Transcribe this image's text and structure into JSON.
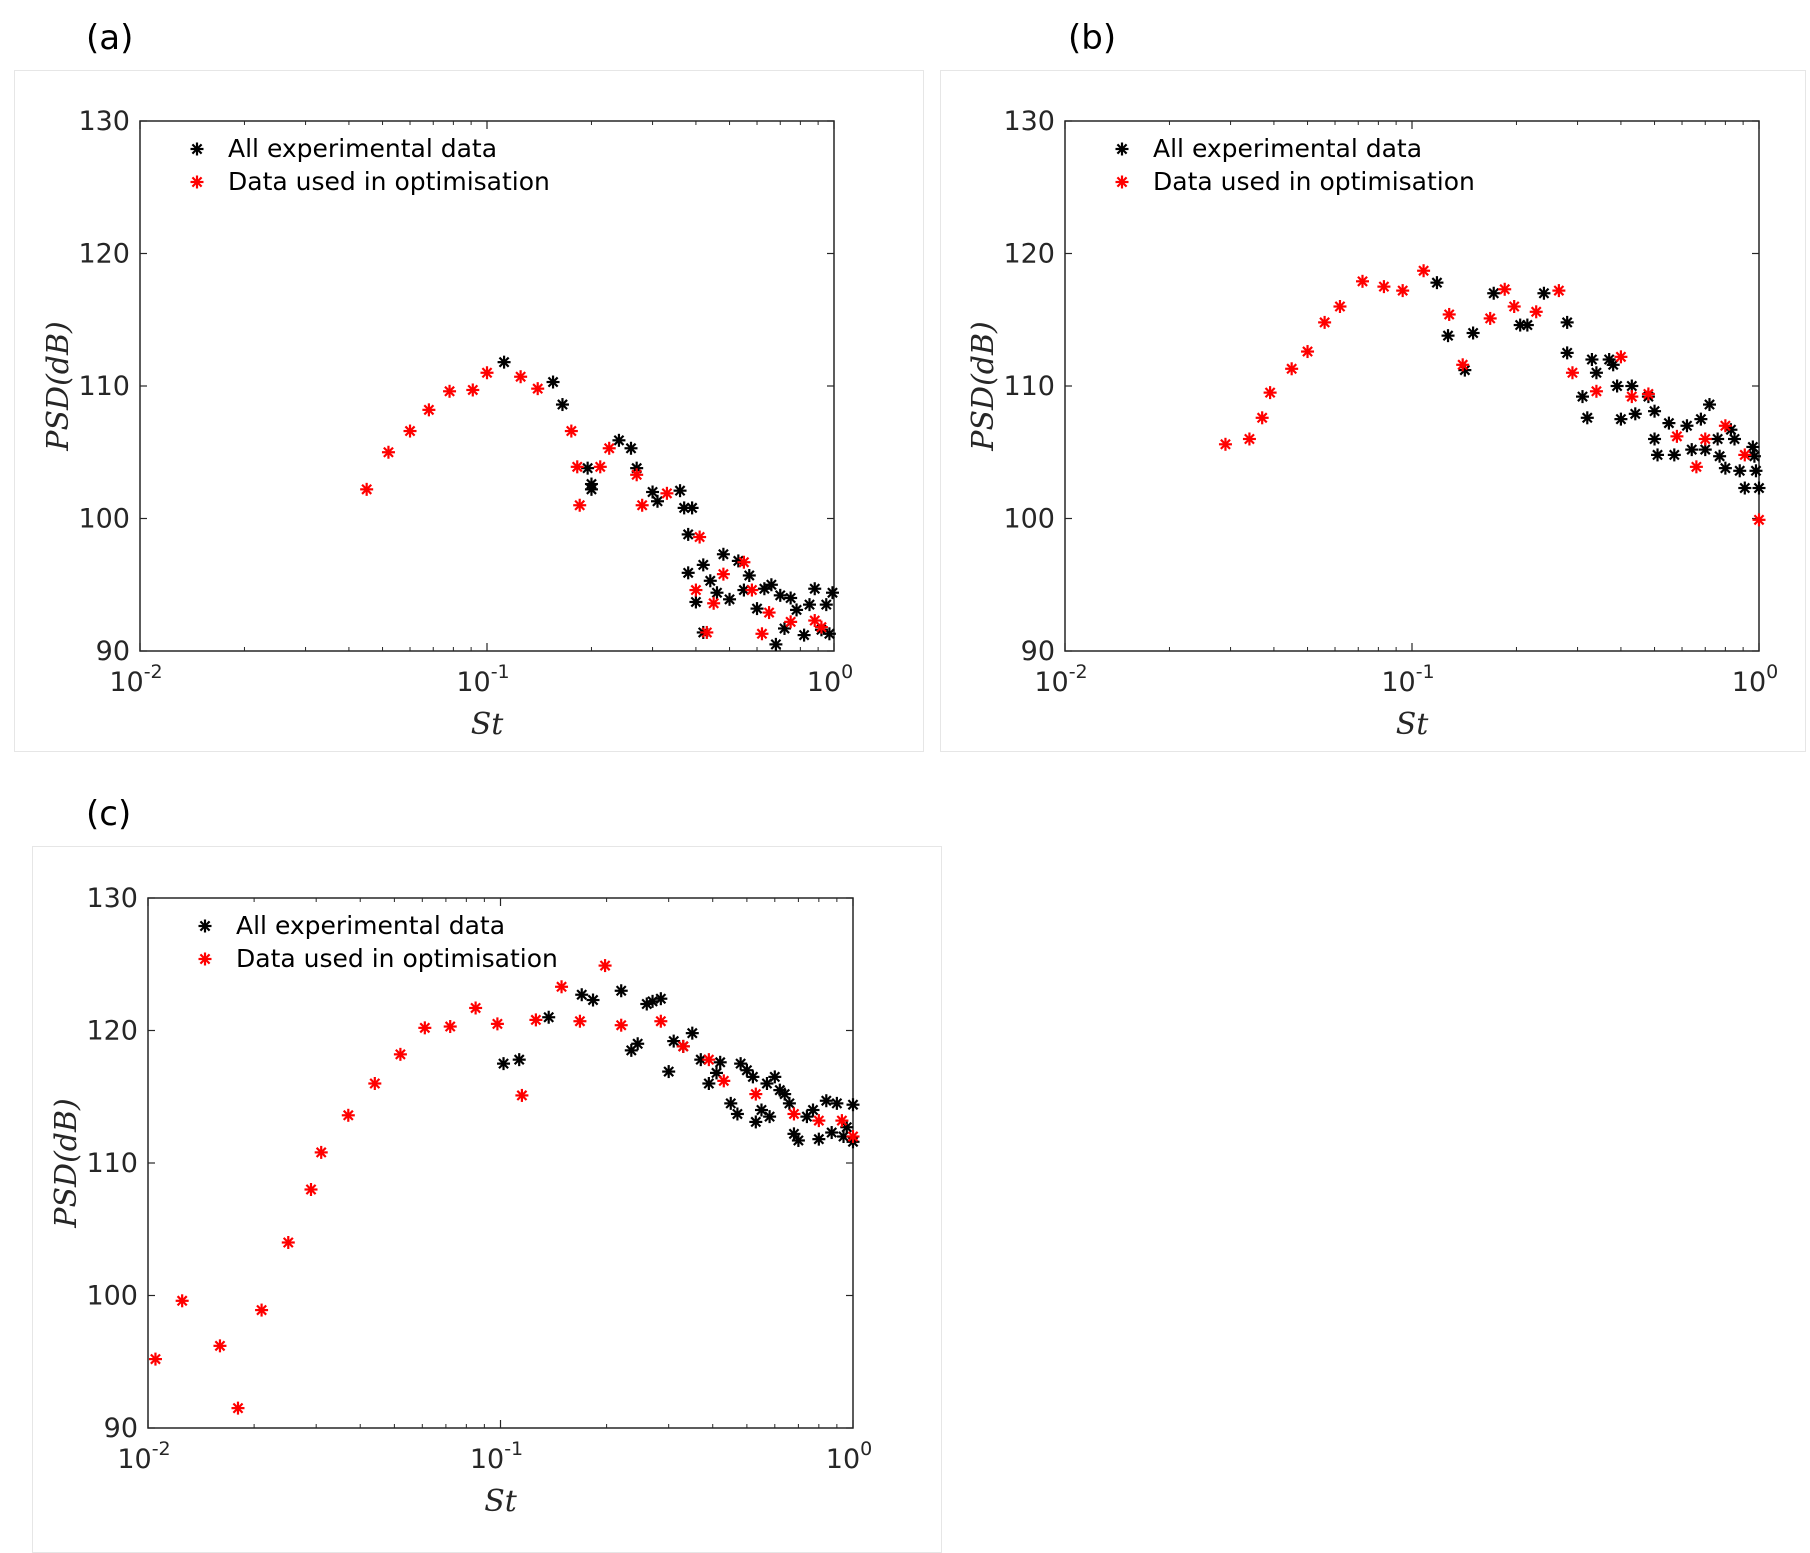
{
  "chart_data": [
    {
      "panel": "(a)",
      "type": "scatter",
      "xscale": "log",
      "xlim": [
        0.01,
        1
      ],
      "ylim": [
        90,
        130
      ],
      "yticks": [
        90,
        100,
        110,
        120,
        130
      ],
      "xticks": [
        {
          "base": "10",
          "exp": "-2"
        },
        {
          "base": "10",
          "exp": "-1"
        },
        {
          "base": "10",
          "exp": "0"
        }
      ],
      "xlabel": "St",
      "ylabel": "PSD(dB)",
      "legend": [
        "All experimental data",
        "Data used in optimisation"
      ],
      "series": [
        {
          "name": "All experimental data",
          "color": "#000000",
          "points": [
            [
              0.112,
              111.8
            ],
            [
              0.155,
              110.3
            ],
            [
              0.165,
              108.6
            ],
            [
              0.195,
              103.8
            ],
            [
              0.2,
              102.2
            ],
            [
              0.2,
              102.6
            ],
            [
              0.24,
              105.9
            ],
            [
              0.26,
              105.3
            ],
            [
              0.27,
              103.8
            ],
            [
              0.3,
              102.0
            ],
            [
              0.31,
              101.3
            ],
            [
              0.36,
              102.1
            ],
            [
              0.37,
              100.8
            ],
            [
              0.38,
              98.8
            ],
            [
              0.39,
              100.8
            ],
            [
              0.38,
              95.9
            ],
            [
              0.4,
              93.7
            ],
            [
              0.42,
              96.5
            ],
            [
              0.42,
              91.4
            ],
            [
              0.44,
              95.3
            ],
            [
              0.46,
              94.4
            ],
            [
              0.48,
              97.3
            ],
            [
              0.5,
              93.9
            ],
            [
              0.53,
              96.8
            ],
            [
              0.55,
              94.6
            ],
            [
              0.57,
              95.7
            ],
            [
              0.6,
              93.2
            ],
            [
              0.63,
              94.7
            ],
            [
              0.66,
              95.0
            ],
            [
              0.68,
              90.5
            ],
            [
              0.7,
              94.2
            ],
            [
              0.72,
              91.7
            ],
            [
              0.75,
              94.0
            ],
            [
              0.78,
              93.1
            ],
            [
              0.82,
              91.2
            ],
            [
              0.85,
              93.5
            ],
            [
              0.88,
              94.7
            ],
            [
              0.92,
              91.6
            ],
            [
              0.95,
              93.5
            ],
            [
              0.97,
              91.3
            ],
            [
              0.99,
              94.4
            ]
          ]
        },
        {
          "name": "Data used in optimisation",
          "color": "#ff0000",
          "points": [
            [
              0.045,
              102.2
            ],
            [
              0.052,
              105.0
            ],
            [
              0.06,
              106.6
            ],
            [
              0.068,
              108.2
            ],
            [
              0.078,
              109.6
            ],
            [
              0.091,
              109.7
            ],
            [
              0.1,
              111.0
            ],
            [
              0.125,
              110.7
            ],
            [
              0.14,
              109.8
            ],
            [
              0.175,
              106.6
            ],
            [
              0.182,
              103.9
            ],
            [
              0.185,
              101.0
            ],
            [
              0.212,
              103.9
            ],
            [
              0.225,
              105.3
            ],
            [
              0.27,
              103.3
            ],
            [
              0.28,
              101.0
            ],
            [
              0.33,
              101.9
            ],
            [
              0.4,
              94.6
            ],
            [
              0.41,
              98.6
            ],
            [
              0.43,
              91.4
            ],
            [
              0.45,
              93.6
            ],
            [
              0.48,
              95.8
            ],
            [
              0.55,
              96.7
            ],
            [
              0.58,
              94.6
            ],
            [
              0.62,
              91.3
            ],
            [
              0.65,
              92.9
            ],
            [
              0.75,
              92.2
            ],
            [
              0.88,
              92.3
            ],
            [
              0.92,
              91.8
            ]
          ]
        }
      ]
    },
    {
      "panel": "(b)",
      "type": "scatter",
      "xscale": "log",
      "xlim": [
        0.01,
        1
      ],
      "ylim": [
        90,
        130
      ],
      "yticks": [
        90,
        100,
        110,
        120,
        130
      ],
      "xticks": [
        {
          "base": "10",
          "exp": "-2"
        },
        {
          "base": "10",
          "exp": "-1"
        },
        {
          "base": "10",
          "exp": "0"
        }
      ],
      "xlabel": "St",
      "ylabel": "PSD(dB)",
      "legend": [
        "All experimental data",
        "Data used in optimisation"
      ],
      "series": [
        {
          "name": "All experimental data",
          "color": "#000000",
          "points": [
            [
              0.118,
              117.8
            ],
            [
              0.127,
              113.8
            ],
            [
              0.142,
              111.2
            ],
            [
              0.15,
              114.0
            ],
            [
              0.172,
              117.0
            ],
            [
              0.205,
              114.6
            ],
            [
              0.215,
              114.6
            ],
            [
              0.24,
              117.0
            ],
            [
              0.28,
              114.8
            ],
            [
              0.28,
              112.5
            ],
            [
              0.31,
              109.2
            ],
            [
              0.32,
              107.6
            ],
            [
              0.33,
              112.0
            ],
            [
              0.34,
              111.0
            ],
            [
              0.37,
              112.0
            ],
            [
              0.38,
              111.6
            ],
            [
              0.39,
              110.0
            ],
            [
              0.4,
              107.5
            ],
            [
              0.43,
              110.0
            ],
            [
              0.44,
              107.9
            ],
            [
              0.48,
              109.2
            ],
            [
              0.5,
              108.1
            ],
            [
              0.5,
              106.0
            ],
            [
              0.51,
              104.8
            ],
            [
              0.55,
              107.2
            ],
            [
              0.57,
              104.8
            ],
            [
              0.62,
              107.0
            ],
            [
              0.64,
              105.2
            ],
            [
              0.68,
              107.5
            ],
            [
              0.7,
              105.2
            ],
            [
              0.72,
              108.6
            ],
            [
              0.76,
              106.0
            ],
            [
              0.77,
              104.7
            ],
            [
              0.8,
              103.8
            ],
            [
              0.83,
              106.7
            ],
            [
              0.85,
              106.0
            ],
            [
              0.88,
              103.6
            ],
            [
              0.91,
              102.3
            ],
            [
              0.96,
              105.4
            ],
            [
              0.97,
              104.7
            ],
            [
              0.98,
              103.6
            ],
            [
              1.0,
              102.3
            ]
          ]
        },
        {
          "name": "Data used in optimisation",
          "color": "#ff0000",
          "points": [
            [
              0.029,
              105.6
            ],
            [
              0.034,
              106.0
            ],
            [
              0.037,
              107.6
            ],
            [
              0.039,
              109.5
            ],
            [
              0.045,
              111.3
            ],
            [
              0.05,
              112.6
            ],
            [
              0.056,
              114.8
            ],
            [
              0.062,
              116.0
            ],
            [
              0.072,
              117.9
            ],
            [
              0.083,
              117.5
            ],
            [
              0.094,
              117.2
            ],
            [
              0.108,
              118.7
            ],
            [
              0.128,
              115.4
            ],
            [
              0.14,
              111.6
            ],
            [
              0.168,
              115.1
            ],
            [
              0.185,
              117.3
            ],
            [
              0.197,
              116.0
            ],
            [
              0.228,
              115.6
            ],
            [
              0.265,
              117.2
            ],
            [
              0.29,
              111.0
            ],
            [
              0.34,
              109.6
            ],
            [
              0.4,
              112.2
            ],
            [
              0.43,
              109.2
            ],
            [
              0.48,
              109.4
            ],
            [
              0.58,
              106.2
            ],
            [
              0.66,
              103.9
            ],
            [
              0.7,
              106.0
            ],
            [
              0.8,
              107.0
            ],
            [
              0.91,
              104.8
            ],
            [
              1.0,
              99.9
            ]
          ]
        }
      ]
    },
    {
      "panel": "(c)",
      "type": "scatter",
      "xscale": "log",
      "xlim": [
        0.01,
        1
      ],
      "ylim": [
        90,
        130
      ],
      "yticks": [
        90,
        100,
        110,
        120,
        130
      ],
      "xticks": [
        {
          "base": "10",
          "exp": "-2"
        },
        {
          "base": "10",
          "exp": "-1"
        },
        {
          "base": "10",
          "exp": "0"
        }
      ],
      "xlabel": "St",
      "ylabel": "PSD(dB)",
      "legend": [
        "All experimental data",
        "Data used in optimisation"
      ],
      "series": [
        {
          "name": "All experimental data",
          "color": "#000000",
          "points": [
            [
              0.102,
              117.5
            ],
            [
              0.113,
              117.8
            ],
            [
              0.137,
              121.0
            ],
            [
              0.17,
              122.7
            ],
            [
              0.183,
              122.3
            ],
            [
              0.22,
              123.0
            ],
            [
              0.235,
              118.5
            ],
            [
              0.245,
              119.0
            ],
            [
              0.26,
              122.0
            ],
            [
              0.27,
              122.2
            ],
            [
              0.285,
              122.4
            ],
            [
              0.3,
              116.9
            ],
            [
              0.31,
              119.2
            ],
            [
              0.33,
              118.8
            ],
            [
              0.35,
              119.8
            ],
            [
              0.37,
              117.8
            ],
            [
              0.39,
              116.0
            ],
            [
              0.41,
              116.8
            ],
            [
              0.42,
              117.6
            ],
            [
              0.45,
              114.5
            ],
            [
              0.47,
              113.7
            ],
            [
              0.48,
              117.5
            ],
            [
              0.5,
              117.0
            ],
            [
              0.52,
              116.5
            ],
            [
              0.53,
              113.1
            ],
            [
              0.55,
              114.0
            ],
            [
              0.57,
              116.0
            ],
            [
              0.58,
              113.5
            ],
            [
              0.6,
              116.5
            ],
            [
              0.62,
              115.5
            ],
            [
              0.64,
              115.2
            ],
            [
              0.66,
              114.5
            ],
            [
              0.68,
              112.2
            ],
            [
              0.7,
              111.7
            ],
            [
              0.74,
              113.5
            ],
            [
              0.77,
              114.0
            ],
            [
              0.8,
              111.8
            ],
            [
              0.84,
              114.7
            ],
            [
              0.87,
              112.3
            ],
            [
              0.9,
              114.5
            ],
            [
              0.94,
              112.0
            ],
            [
              0.96,
              112.7
            ],
            [
              1.0,
              114.4
            ],
            [
              1.0,
              111.6
            ]
          ]
        },
        {
          "name": "Data used in optimisation",
          "color": "#ff0000",
          "points": [
            [
              0.0105,
              95.2
            ],
            [
              0.0125,
              99.6
            ],
            [
              0.016,
              96.2
            ],
            [
              0.018,
              91.5
            ],
            [
              0.021,
              98.9
            ],
            [
              0.025,
              104.0
            ],
            [
              0.029,
              108.0
            ],
            [
              0.031,
              110.8
            ],
            [
              0.037,
              113.6
            ],
            [
              0.044,
              116.0
            ],
            [
              0.052,
              118.2
            ],
            [
              0.061,
              120.2
            ],
            [
              0.072,
              120.3
            ],
            [
              0.085,
              121.7
            ],
            [
              0.098,
              120.5
            ],
            [
              0.115,
              115.1
            ],
            [
              0.126,
              120.8
            ],
            [
              0.149,
              123.3
            ],
            [
              0.168,
              120.7
            ],
            [
              0.198,
              124.9
            ],
            [
              0.22,
              120.4
            ],
            [
              0.285,
              120.7
            ],
            [
              0.33,
              118.8
            ],
            [
              0.39,
              117.8
            ],
            [
              0.43,
              116.2
            ],
            [
              0.53,
              115.2
            ],
            [
              0.68,
              113.7
            ],
            [
              0.8,
              113.2
            ],
            [
              0.93,
              113.2
            ],
            [
              1.0,
              112.0
            ]
          ]
        }
      ]
    }
  ],
  "panels": {
    "a": {
      "label": "(a)"
    },
    "b": {
      "label": "(b)"
    },
    "c": {
      "label": "(c)"
    }
  }
}
